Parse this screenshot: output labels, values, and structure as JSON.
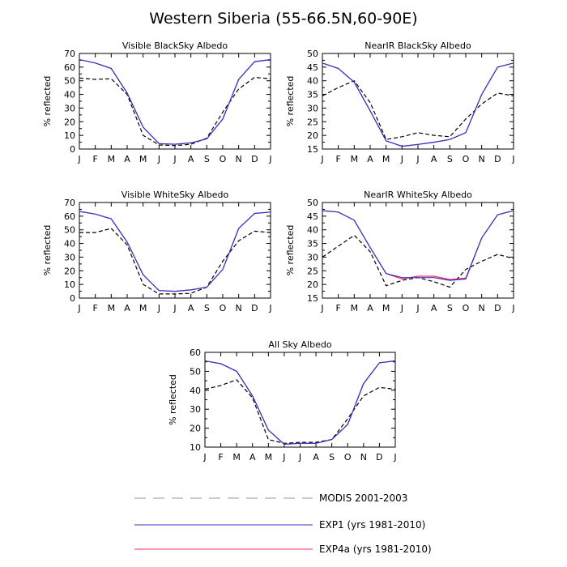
{
  "title": "Western Siberia (55-66.5N,60-90E)",
  "colors": {
    "modis": "#000000",
    "exp1": "#3333cc",
    "exp4a": "#ff2a55",
    "legend_modis": "#9a9a9a"
  },
  "legend": [
    {
      "label": "MODIS 2001-2003",
      "style": "dashed",
      "color": "legend_modis"
    },
    {
      "label": "EXP1 (yrs 1981-2010)",
      "style": "solid",
      "color": "exp1"
    },
    {
      "label": "EXP4a (yrs 1981-2010)",
      "style": "solid",
      "color": "exp4a"
    }
  ],
  "chart_data": [
    {
      "type": "line",
      "title": "Visible BlackSky Albedo",
      "ylabel": "% reflected",
      "categories": [
        "J",
        "F",
        "M",
        "A",
        "M",
        "J",
        "J",
        "A",
        "S",
        "O",
        "N",
        "D",
        "J"
      ],
      "ylim": [
        0,
        70
      ],
      "yticks": [
        0,
        10,
        20,
        30,
        40,
        50,
        60,
        70
      ],
      "series": [
        {
          "name": "MODIS 2001-2003",
          "style": "dashed",
          "values": [
            52,
            51,
            51.5,
            40,
            10,
            3,
            2.5,
            3.5,
            8,
            27,
            44,
            52.5,
            51.5
          ]
        },
        {
          "name": "EXP1 (yrs 1981-2010)",
          "style": "solid",
          "values": [
            65.5,
            63,
            59,
            41,
            16,
            4,
            3.5,
            4.5,
            7.5,
            22,
            51,
            64,
            65.5
          ]
        },
        {
          "name": "EXP4a (yrs 1981-2010)",
          "style": "solid",
          "values": [
            65.5,
            63,
            59,
            41,
            16,
            4,
            3.5,
            4.5,
            7.5,
            22,
            51,
            64,
            65.5
          ]
        }
      ]
    },
    {
      "type": "line",
      "title": "NearIR BlackSky Albedo",
      "ylabel": "% reflected",
      "categories": [
        "J",
        "F",
        "M",
        "A",
        "M",
        "J",
        "J",
        "A",
        "S",
        "O",
        "N",
        "D",
        "J"
      ],
      "ylim": [
        15,
        50
      ],
      "yticks": [
        15,
        20,
        25,
        30,
        35,
        40,
        45,
        50
      ],
      "series": [
        {
          "name": "MODIS 2001-2003",
          "style": "dashed",
          "values": [
            34.5,
            37.5,
            40,
            32,
            18.5,
            19.5,
            21,
            20,
            19.5,
            26,
            31.5,
            35.5,
            34.5
          ]
        },
        {
          "name": "EXP1 (yrs 1981-2010)",
          "style": "solid",
          "values": [
            46.5,
            44.5,
            39.5,
            29,
            18,
            16,
            16.7,
            17.5,
            18.5,
            21,
            35,
            45,
            46.5
          ]
        },
        {
          "name": "EXP4a (yrs 1981-2010)",
          "style": "solid",
          "values": [
            46.5,
            44.5,
            39.5,
            29,
            18,
            16,
            16.7,
            17.5,
            18.5,
            21,
            35,
            45,
            46.5
          ]
        }
      ]
    },
    {
      "type": "line",
      "title": "Visible WhiteSky Albedo",
      "ylabel": "% reflected",
      "categories": [
        "J",
        "F",
        "M",
        "A",
        "M",
        "J",
        "J",
        "A",
        "S",
        "O",
        "N",
        "D",
        "J"
      ],
      "ylim": [
        0,
        70
      ],
      "yticks": [
        0,
        10,
        20,
        30,
        40,
        50,
        60,
        70
      ],
      "series": [
        {
          "name": "MODIS 2001-2003",
          "style": "dashed",
          "values": [
            48,
            48,
            51,
            39,
            10,
            3,
            3,
            3.5,
            8,
            27,
            42,
            49,
            48
          ]
        },
        {
          "name": "EXP1 (yrs 1981-2010)",
          "style": "solid",
          "values": [
            63.5,
            61.5,
            58,
            41,
            17,
            5.5,
            5,
            6,
            8,
            21,
            51,
            62,
            63
          ]
        },
        {
          "name": "EXP4a (yrs 1981-2010)",
          "style": "solid",
          "values": [
            63.5,
            61.5,
            58,
            41,
            17,
            5.5,
            5,
            6,
            8,
            21,
            51,
            62,
            63
          ]
        }
      ]
    },
    {
      "type": "line",
      "title": "NearIR WhiteSky Albedo",
      "ylabel": "% reflected",
      "categories": [
        "J",
        "F",
        "M",
        "A",
        "M",
        "J",
        "J",
        "A",
        "S",
        "O",
        "N",
        "D",
        "J"
      ],
      "ylim": [
        15,
        50
      ],
      "yticks": [
        15,
        20,
        25,
        30,
        35,
        40,
        45,
        50
      ],
      "series": [
        {
          "name": "MODIS 2001-2003",
          "style": "dashed",
          "values": [
            30,
            34,
            38,
            32,
            19.5,
            21.5,
            22.5,
            21,
            19,
            25.5,
            28.5,
            31,
            29.5
          ]
        },
        {
          "name": "EXP1 (yrs 1981-2010)",
          "style": "solid",
          "values": [
            47,
            46.5,
            43.5,
            33.5,
            24,
            22.5,
            22.5,
            22.5,
            21.5,
            22,
            37,
            45.5,
            47
          ]
        },
        {
          "name": "EXP4a (yrs 1981-2010)",
          "style": "solid",
          "values": [
            47,
            46.5,
            43.5,
            33.5,
            24,
            22,
            23,
            23,
            21.8,
            22.3,
            37,
            45.5,
            47
          ]
        }
      ]
    },
    {
      "type": "line",
      "title": "All Sky Albedo",
      "ylabel": "% reflected",
      "categories": [
        "J",
        "F",
        "M",
        "A",
        "M",
        "J",
        "J",
        "A",
        "S",
        "O",
        "N",
        "D",
        "J"
      ],
      "ylim": [
        10,
        60
      ],
      "yticks": [
        10,
        20,
        30,
        40,
        50,
        60
      ],
      "series": [
        {
          "name": "MODIS 2001-2003",
          "style": "dashed",
          "values": [
            40.5,
            42.5,
            45.5,
            36,
            14,
            12,
            12.5,
            12.5,
            14,
            25,
            37,
            41.5,
            40.5
          ]
        },
        {
          "name": "EXP1 (yrs 1981-2010)",
          "style": "solid",
          "values": [
            55.5,
            54,
            50,
            37,
            19,
            11.5,
            12,
            12,
            14,
            22,
            43.5,
            54.5,
            55.5
          ]
        },
        {
          "name": "EXP4a (yrs 1981-2010)",
          "style": "solid",
          "values": [
            55.5,
            54,
            50,
            37,
            19,
            11.5,
            12,
            12,
            14,
            22,
            43.5,
            54.5,
            55.5
          ]
        }
      ]
    }
  ]
}
